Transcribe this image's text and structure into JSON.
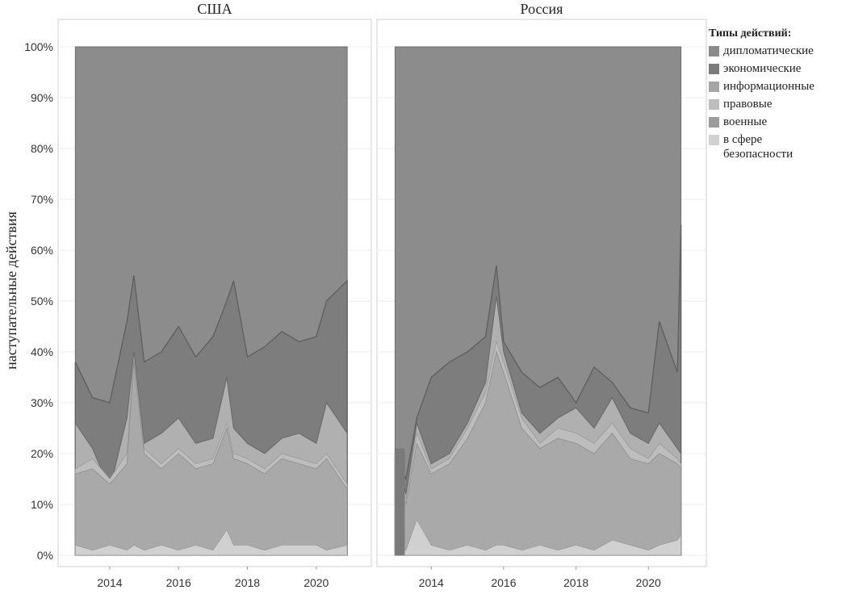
{
  "chart_data": {
    "type": "area",
    "stacked": "percent",
    "ylabel": "наступательные действия",
    "y_ticks": [
      "0%",
      "10%",
      "20%",
      "30%",
      "40%",
      "50%",
      "60%",
      "70%",
      "80%",
      "90%",
      "100%"
    ],
    "x_ticks": [
      "2014",
      "2016",
      "2018",
      "2020"
    ],
    "ylim": [
      0,
      1
    ],
    "xlim": [
      2012.5,
      2021.6
    ],
    "grid": true,
    "legend_position": "right",
    "legend_title": "Типы действий:",
    "series_legend": [
      {
        "name": "дипломатические",
        "color": "#8a8a8a"
      },
      {
        "name": "экономические",
        "color": "#7c7c7c"
      },
      {
        "name": "информационные",
        "color": "#a6a6a6"
      },
      {
        "name": "правовые",
        "color": "#bdbdbd"
      },
      {
        "name": "военные",
        "color": "#9c9c9c"
      },
      {
        "name": "в сфере безопасности",
        "color": "#d2d2d2"
      }
    ],
    "panels": [
      {
        "title": "США",
        "x": [
          2013.0,
          2013.5,
          2014.0,
          2014.5,
          2014.7,
          2015.0,
          2015.5,
          2016.0,
          2016.5,
          2017.0,
          2017.4,
          2017.6,
          2018.0,
          2018.5,
          2019.0,
          2019.5,
          2020.0,
          2020.3,
          2020.9
        ],
        "boundaries": {
          "military": [
            0.02,
            0.01,
            0.02,
            0.01,
            0.02,
            0.01,
            0.02,
            0.01,
            0.02,
            0.01,
            0.05,
            0.02,
            0.02,
            0.01,
            0.02,
            0.02,
            0.02,
            0.01,
            0.02
          ],
          "legal": [
            0.16,
            0.17,
            0.14,
            0.18,
            0.38,
            0.2,
            0.17,
            0.2,
            0.17,
            0.18,
            0.25,
            0.19,
            0.18,
            0.16,
            0.19,
            0.18,
            0.17,
            0.19,
            0.13
          ],
          "informational": [
            0.17,
            0.19,
            0.15,
            0.2,
            0.39,
            0.21,
            0.18,
            0.21,
            0.18,
            0.19,
            0.26,
            0.2,
            0.19,
            0.17,
            0.2,
            0.19,
            0.18,
            0.2,
            0.14
          ],
          "economic_lower": [
            0.26,
            0.21,
            0.13,
            0.27,
            0.4,
            0.22,
            0.24,
            0.27,
            0.22,
            0.23,
            0.35,
            0.25,
            0.22,
            0.2,
            0.23,
            0.24,
            0.22,
            0.3,
            0.24
          ],
          "economic_upper": [
            0.38,
            0.31,
            0.3,
            0.46,
            0.55,
            0.38,
            0.4,
            0.45,
            0.39,
            0.43,
            0.5,
            0.54,
            0.39,
            0.41,
            0.44,
            0.42,
            0.43,
            0.5,
            0.54
          ]
        }
      },
      {
        "title": "Россия",
        "x": [
          2013.0,
          2013.3,
          2013.6,
          2014.0,
          2014.5,
          2015.0,
          2015.5,
          2015.8,
          2016.0,
          2016.5,
          2017.0,
          2017.5,
          2018.0,
          2018.5,
          2019.0,
          2019.5,
          2020.0,
          2020.3,
          2020.8,
          2020.9
        ],
        "boundaries": {
          "military": [
            0.0,
            0.01,
            0.07,
            0.02,
            0.01,
            0.02,
            0.01,
            0.02,
            0.02,
            0.01,
            0.02,
            0.01,
            0.02,
            0.01,
            0.03,
            0.02,
            0.01,
            0.02,
            0.03,
            0.04
          ],
          "legal": [
            0.19,
            0.1,
            0.22,
            0.16,
            0.18,
            0.23,
            0.3,
            0.4,
            0.36,
            0.25,
            0.21,
            0.23,
            0.22,
            0.2,
            0.24,
            0.19,
            0.18,
            0.2,
            0.18,
            0.17
          ],
          "informational": [
            0.2,
            0.11,
            0.24,
            0.17,
            0.19,
            0.25,
            0.32,
            0.42,
            0.38,
            0.27,
            0.22,
            0.25,
            0.24,
            0.22,
            0.26,
            0.21,
            0.19,
            0.22,
            0.19,
            0.18
          ],
          "economic_lower": [
            0.21,
            0.12,
            0.26,
            0.18,
            0.2,
            0.26,
            0.34,
            0.51,
            0.4,
            0.28,
            0.24,
            0.27,
            0.29,
            0.25,
            0.31,
            0.24,
            0.22,
            0.26,
            0.21,
            0.2
          ],
          "economic_upper": [
            0.2,
            0.15,
            0.27,
            0.35,
            0.38,
            0.4,
            0.43,
            0.57,
            0.42,
            0.36,
            0.33,
            0.35,
            0.3,
            0.37,
            0.34,
            0.29,
            0.28,
            0.46,
            0.36,
            0.65
          ]
        }
      }
    ]
  }
}
